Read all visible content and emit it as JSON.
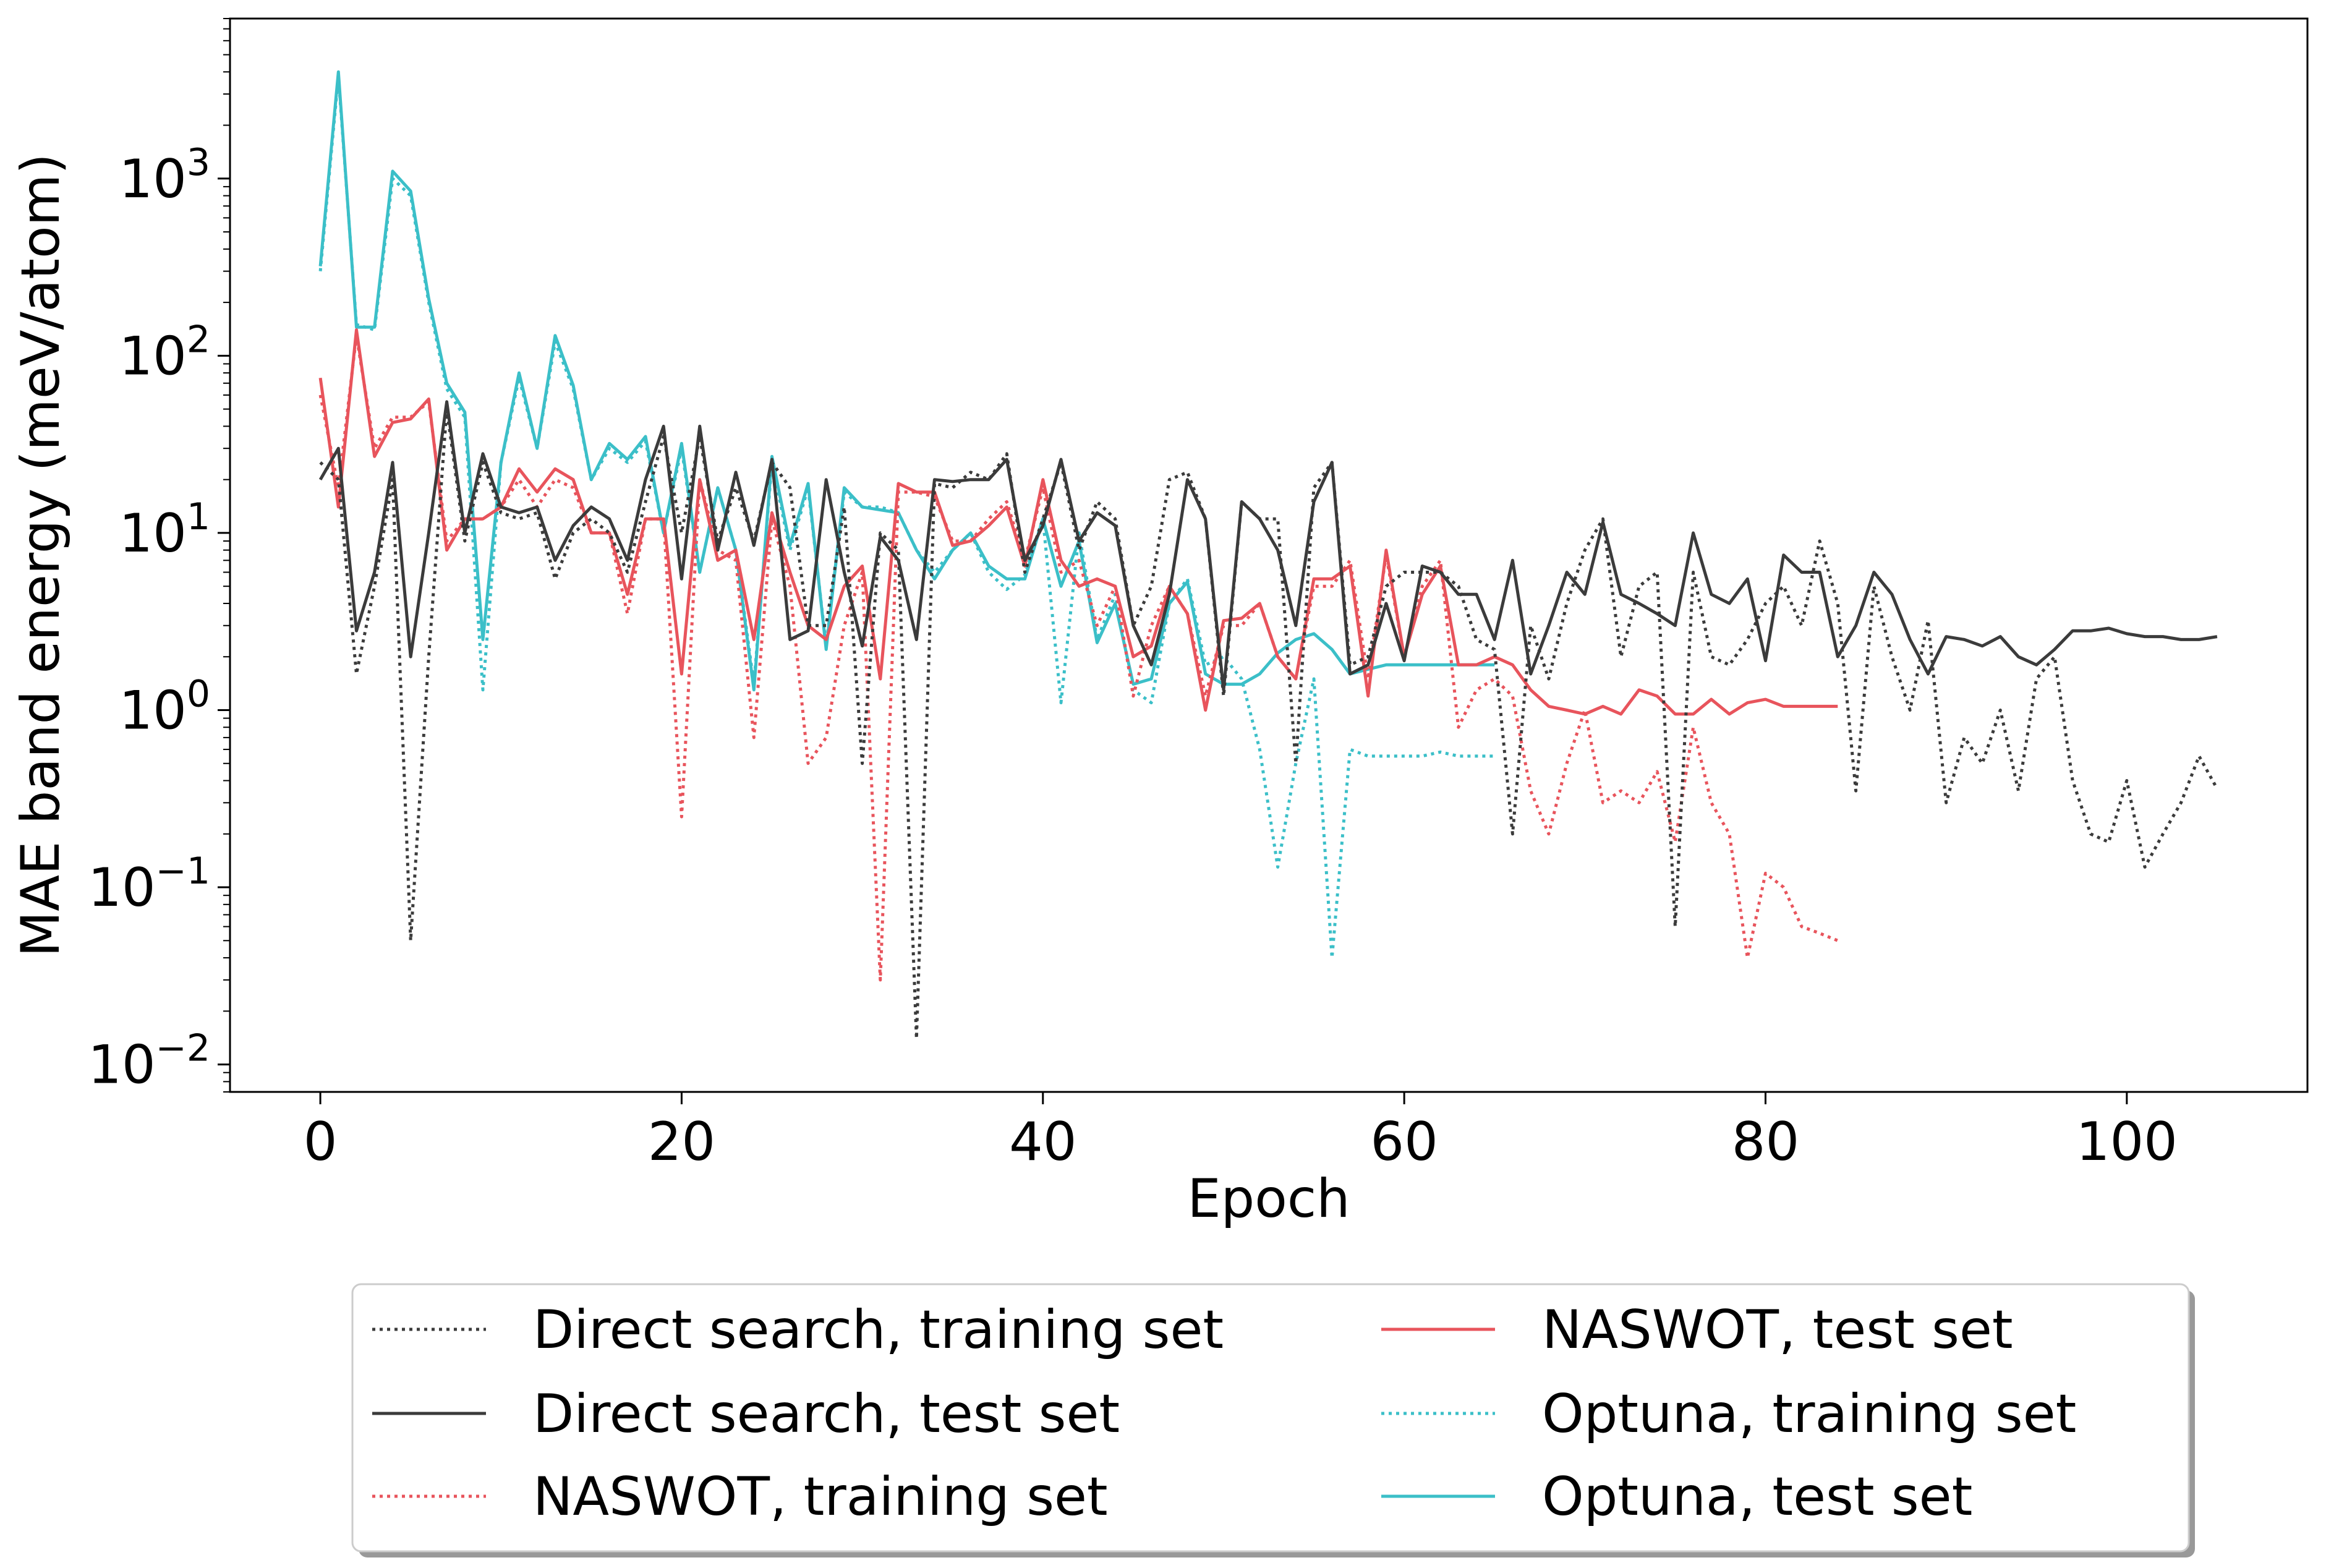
{
  "chart_data": {
    "type": "line",
    "title": "",
    "xlabel": "Epoch",
    "ylabel": "MAE band energy (meV/atom)",
    "xlim": [
      -5,
      110
    ],
    "ylim": [
      0.007,
      8000
    ],
    "yscale": "log",
    "grid": false,
    "legend_position": "below-center",
    "xticks": [
      0,
      20,
      40,
      60,
      80,
      100
    ],
    "yticks": [
      {
        "value": 0.01,
        "base": "10",
        "exp": "−2"
      },
      {
        "value": 0.1,
        "base": "10",
        "exp": "−1"
      },
      {
        "value": 1,
        "base": "10",
        "exp": "0"
      },
      {
        "value": 10,
        "base": "10",
        "exp": "1"
      },
      {
        "value": 100,
        "base": "10",
        "exp": "2"
      },
      {
        "value": 1000,
        "base": "10",
        "exp": "3"
      }
    ],
    "series": [
      {
        "name": "Direct search, training set",
        "color": "#3b3b3b",
        "style": "dotted",
        "x": [
          0,
          1,
          2,
          3,
          4,
          5,
          6,
          7,
          8,
          9,
          10,
          11,
          12,
          13,
          14,
          15,
          16,
          17,
          18,
          19,
          20,
          21,
          22,
          23,
          24,
          25,
          26,
          27,
          28,
          29,
          30,
          31,
          32,
          33,
          34,
          35,
          36,
          37,
          38,
          39,
          40,
          41,
          42,
          43,
          44,
          45,
          46,
          47,
          48,
          49,
          50,
          51,
          52,
          53,
          54,
          55,
          56,
          57,
          58,
          59,
          60,
          61,
          62,
          63,
          64,
          65,
          66,
          67,
          68,
          69,
          70,
          71,
          72,
          73,
          74,
          75,
          76,
          77,
          78,
          79,
          80,
          81,
          82,
          83,
          84,
          85,
          86,
          87,
          88,
          89,
          90,
          91,
          92,
          93,
          94,
          95,
          96,
          97,
          98,
          99,
          100,
          101,
          102,
          103,
          104,
          105
        ],
        "values": [
          25,
          20,
          1.6,
          5,
          20,
          0.05,
          2,
          50,
          9,
          25,
          13,
          12,
          13,
          5.5,
          10,
          12,
          10,
          6,
          15,
          35,
          10,
          35,
          9,
          18,
          9,
          25,
          18,
          3,
          3,
          14,
          0.5,
          10,
          8,
          0.014,
          19,
          18,
          22,
          20,
          28,
          6,
          12,
          25,
          8,
          15,
          12,
          3,
          5,
          20,
          22,
          12,
          1.2,
          15,
          12,
          12,
          0.5,
          18,
          25,
          1.8,
          2,
          5,
          6,
          6,
          6,
          5,
          2.5,
          2.2,
          0.2,
          3,
          1.5,
          4,
          8,
          12,
          2,
          5,
          6,
          0.06,
          6,
          2,
          1.8,
          2.5,
          4,
          5,
          3,
          9,
          4,
          0.35,
          5,
          2,
          1,
          3.2,
          0.3,
          0.7,
          0.5,
          1,
          0.35,
          1.5,
          2,
          0.4,
          0.2,
          0.18,
          0.4,
          0.13,
          0.2,
          0.3,
          0.55,
          0.36
        ]
      },
      {
        "name": "Direct search, test set",
        "color": "#3b3b3b",
        "style": "solid",
        "x": [
          0,
          1,
          2,
          3,
          4,
          5,
          6,
          7,
          8,
          9,
          10,
          11,
          12,
          13,
          14,
          15,
          16,
          17,
          18,
          19,
          20,
          21,
          22,
          23,
          24,
          25,
          26,
          27,
          28,
          29,
          30,
          31,
          32,
          33,
          34,
          35,
          36,
          37,
          38,
          39,
          40,
          41,
          42,
          43,
          44,
          45,
          46,
          47,
          48,
          49,
          50,
          51,
          52,
          53,
          54,
          55,
          56,
          57,
          58,
          59,
          60,
          61,
          62,
          63,
          64,
          65,
          66,
          67,
          68,
          69,
          70,
          71,
          72,
          73,
          74,
          75,
          76,
          77,
          78,
          79,
          80,
          81,
          82,
          83,
          84,
          85,
          86,
          87,
          88,
          89,
          90,
          91,
          92,
          93,
          94,
          95,
          96,
          97,
          98,
          99,
          100,
          101,
          102,
          103,
          104,
          105
        ],
        "values": [
          20,
          30,
          2.8,
          6,
          25,
          2,
          10,
          55,
          10,
          28,
          14,
          13,
          14,
          7,
          11,
          14,
          12,
          7,
          20,
          40,
          5.5,
          40,
          8,
          22,
          8.5,
          26,
          2.5,
          2.8,
          20,
          6,
          2.3,
          9.5,
          7,
          2.5,
          20,
          19.5,
          20,
          20,
          26,
          7,
          11,
          26,
          9,
          13,
          11,
          3,
          1.8,
          4.5,
          20,
          12,
          1.3,
          15,
          12,
          8,
          3,
          15,
          25,
          1.6,
          1.8,
          4,
          1.9,
          6.5,
          6,
          4.5,
          4.5,
          2.5,
          7,
          1.6,
          3,
          6,
          4.5,
          11.5,
          4.5,
          4,
          3.5,
          3,
          10,
          4.5,
          4,
          5.5,
          1.9,
          7.5,
          6,
          6,
          2,
          3,
          6,
          4.5,
          2.5,
          1.6,
          2.6,
          2.5,
          2.3,
          2.6,
          2,
          1.8,
          2.2,
          2.8,
          2.8,
          2.9,
          2.7,
          2.6,
          2.6,
          2.5,
          2.5,
          2.6
        ]
      },
      {
        "name": "NASWOT, training set",
        "color": "#e8545c",
        "style": "dotted",
        "x": [
          0,
          1,
          2,
          3,
          4,
          5,
          6,
          7,
          8,
          9,
          10,
          11,
          12,
          13,
          14,
          15,
          16,
          17,
          18,
          19,
          20,
          21,
          22,
          23,
          24,
          25,
          26,
          27,
          28,
          29,
          30,
          31,
          32,
          33,
          34,
          35,
          36,
          37,
          38,
          39,
          40,
          41,
          42,
          43,
          44,
          45,
          46,
          47,
          48,
          49,
          50,
          51,
          52,
          53,
          54,
          55,
          56,
          57,
          58,
          59,
          60,
          61,
          62,
          63,
          64,
          65,
          66,
          67,
          68,
          69,
          70,
          71,
          72,
          73,
          74,
          75,
          76,
          77,
          78,
          79,
          80,
          81,
          82,
          83,
          84
        ],
        "values": [
          60,
          18,
          130,
          30,
          45,
          45,
          55,
          9,
          12,
          12,
          14,
          20,
          14,
          20,
          18,
          10,
          10,
          3.5,
          12,
          12,
          0.25,
          20,
          8,
          7,
          0.7,
          12,
          5,
          0.5,
          0.7,
          3,
          6,
          0.03,
          17,
          17,
          16,
          9,
          9,
          12,
          15,
          7,
          18,
          6,
          7,
          3,
          5,
          1.2,
          3,
          5,
          3.5,
          1.2,
          3,
          3,
          4,
          2,
          1.5,
          5,
          5,
          7,
          1.5,
          7.5,
          2,
          5,
          7,
          0.8,
          1.3,
          1.5,
          1.2,
          0.35,
          0.2,
          0.5,
          1,
          0.3,
          0.35,
          0.3,
          0.45,
          0.18,
          0.8,
          0.3,
          0.2,
          0.04,
          0.12,
          0.1,
          0.06,
          0.055,
          0.05
        ]
      },
      {
        "name": "NASWOT, test set",
        "color": "#e8545c",
        "style": "solid",
        "x": [
          0,
          1,
          2,
          3,
          4,
          5,
          6,
          7,
          8,
          9,
          10,
          11,
          12,
          13,
          14,
          15,
          16,
          17,
          18,
          19,
          20,
          21,
          22,
          23,
          24,
          25,
          26,
          27,
          28,
          29,
          30,
          31,
          32,
          33,
          34,
          35,
          36,
          37,
          38,
          39,
          40,
          41,
          42,
          43,
          44,
          45,
          46,
          47,
          48,
          49,
          50,
          51,
          52,
          53,
          54,
          55,
          56,
          57,
          58,
          59,
          60,
          61,
          62,
          63,
          64,
          65,
          66,
          67,
          68,
          69,
          70,
          71,
          72,
          73,
          74,
          75,
          76,
          77,
          78,
          79,
          80,
          81,
          82,
          83,
          84
        ],
        "values": [
          75,
          14,
          140,
          27,
          42,
          44,
          57,
          8,
          12,
          12,
          14,
          23,
          17,
          23,
          20,
          10,
          10,
          4.5,
          12,
          12,
          1.6,
          20,
          7,
          8,
          2.5,
          13,
          6,
          3,
          2.5,
          5,
          6.5,
          1.5,
          19,
          17,
          17,
          8.5,
          9,
          11,
          14,
          6.5,
          20,
          7,
          5,
          5.5,
          5,
          2,
          2.3,
          5,
          3.5,
          1,
          3.2,
          3.3,
          4,
          2,
          1.5,
          5.5,
          5.5,
          6.5,
          1.2,
          8,
          2,
          4.5,
          6.5,
          1.8,
          1.8,
          2,
          1.8,
          1.3,
          1.05,
          1,
          0.95,
          1.05,
          0.95,
          1.3,
          1.2,
          0.95,
          0.95,
          1.15,
          0.95,
          1.1,
          1.15,
          1.05,
          1.05,
          1.05,
          1.05
        ]
      },
      {
        "name": "Optuna, training set",
        "color": "#3bbfc8",
        "style": "dotted",
        "x": [
          0,
          1,
          2,
          3,
          4,
          5,
          6,
          7,
          8,
          9,
          10,
          11,
          12,
          13,
          14,
          15,
          16,
          17,
          18,
          19,
          20,
          21,
          22,
          23,
          24,
          25,
          26,
          27,
          28,
          29,
          30,
          31,
          32,
          33,
          34,
          35,
          36,
          37,
          38,
          39,
          40,
          41,
          42,
          43,
          44,
          45,
          46,
          47,
          48,
          49,
          50,
          51,
          52,
          53,
          54,
          55,
          56,
          57,
          58,
          59,
          60,
          61,
          62,
          63,
          64,
          65
        ],
        "values": [
          300,
          3800,
          150,
          140,
          1000,
          800,
          200,
          65,
          45,
          1.3,
          25,
          75,
          30,
          120,
          65,
          20,
          30,
          25,
          33,
          10,
          30,
          6,
          18,
          8,
          1.4,
          25,
          8,
          18,
          2.3,
          17,
          14,
          14,
          13,
          8,
          6,
          8,
          10,
          6,
          4.8,
          5.8,
          12,
          1.1,
          10,
          2.5,
          4.5,
          1.3,
          1.1,
          4,
          5.5,
          1.8,
          2,
          1.5,
          0.6,
          0.13,
          0.5,
          1.5,
          0.04,
          0.6,
          0.55,
          0.55,
          0.55,
          0.55,
          0.58,
          0.55,
          0.55,
          0.55
        ]
      },
      {
        "name": "Optuna, test set",
        "color": "#3bbfc8",
        "style": "solid",
        "x": [
          0,
          1,
          2,
          3,
          4,
          5,
          6,
          7,
          8,
          9,
          10,
          11,
          12,
          13,
          14,
          15,
          16,
          17,
          18,
          19,
          20,
          21,
          22,
          23,
          24,
          25,
          26,
          27,
          28,
          29,
          30,
          31,
          32,
          33,
          34,
          35,
          36,
          37,
          38,
          39,
          40,
          41,
          42,
          43,
          44,
          45,
          46,
          47,
          48,
          49,
          50,
          51,
          52,
          53,
          54,
          55,
          56,
          57,
          58,
          59,
          60,
          61,
          62,
          63,
          64,
          65
        ],
        "values": [
          320,
          4000,
          145,
          145,
          1100,
          850,
          210,
          70,
          48,
          2.5,
          25,
          80,
          30,
          130,
          68,
          20,
          32,
          26,
          35,
          10,
          32,
          6,
          18,
          8,
          1.3,
          27,
          8.5,
          19,
          2.2,
          18,
          14,
          13.5,
          13,
          8,
          5.5,
          8,
          10,
          6.5,
          5.5,
          5.5,
          12,
          5,
          9,
          2.4,
          4,
          1.4,
          1.5,
          4,
          5.3,
          1.6,
          1.4,
          1.4,
          1.6,
          2.1,
          2.5,
          2.7,
          2.2,
          1.6,
          1.7,
          1.8,
          1.8,
          1.8,
          1.8,
          1.8,
          1.8,
          1.8
        ]
      }
    ]
  }
}
